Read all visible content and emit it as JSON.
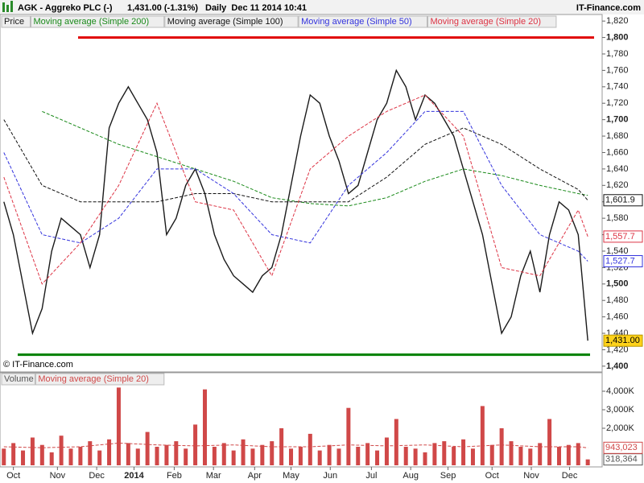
{
  "header": {
    "symbol": "AGK - Aggreko PLC (-)",
    "quote": "1,431.00 (-1.31%)",
    "period": "Daily  Dec 11 2014 10:41",
    "brand": "IT-Finance.com",
    "copyright": "© IT-Finance.com"
  },
  "chart_data": [
    {
      "type": "line",
      "categories": [
        null,
        null,
        null,
        null,
        null,
        null,
        null,
        null,
        null,
        null,
        null,
        null,
        null,
        null,
        null,
        null,
        null,
        null,
        null,
        null,
        null,
        null,
        null,
        null,
        null,
        null,
        null,
        null,
        null,
        null,
        null,
        null,
        null,
        null,
        null,
        null,
        null,
        null,
        null,
        null,
        null,
        null,
        null,
        null,
        null,
        null,
        null,
        null,
        null,
        null,
        null,
        null,
        null,
        null,
        null,
        null,
        null,
        null,
        null,
        null,
        null,
        null
      ],
      "xlim": [
        -0.4,
        62.5
      ],
      "xticks": [
        {
          "value": 1.0,
          "label": "Oct"
        },
        {
          "value": 5.6,
          "label": "Nov"
        },
        {
          "value": 9.7,
          "label": "Dec"
        },
        {
          "value": 13.6,
          "label": "2014"
        },
        {
          "value": 17.8,
          "label": "Feb"
        },
        {
          "value": 21.9,
          "label": "Mar"
        },
        {
          "value": 26.2,
          "label": "Apr"
        },
        {
          "value": 30.0,
          "label": "May"
        },
        {
          "value": 34.1,
          "label": "Jun"
        },
        {
          "value": 38.4,
          "label": "Jul"
        },
        {
          "value": 42.5,
          "label": "Aug"
        },
        {
          "value": 46.4,
          "label": "Sep"
        },
        {
          "value": 51.0,
          "label": "Oct"
        },
        {
          "value": 55.1,
          "label": "Nov"
        },
        {
          "value": 59.1,
          "label": "Dec"
        }
      ],
      "ylim": [
        1393,
        1828
      ],
      "yticks": [
        {
          "value": 1400,
          "label": "1,400"
        },
        {
          "value": 1420,
          "label": "1,420"
        },
        {
          "value": 1440,
          "label": "1,440"
        },
        {
          "value": 1460,
          "label": "1,460"
        },
        {
          "value": 1480,
          "label": "1,480"
        },
        {
          "value": 1500,
          "label": "1,500"
        },
        {
          "value": 1520,
          "label": "1,520"
        },
        {
          "value": 1540,
          "label": "1,540"
        },
        {
          "value": 1560,
          "label": "1,560"
        },
        {
          "value": 1580,
          "label": "1,580"
        },
        {
          "value": 1600,
          "label": "1,600"
        },
        {
          "value": 1620,
          "label": "1,620"
        },
        {
          "value": 1640,
          "label": "1,640"
        },
        {
          "value": 1660,
          "label": "1,660"
        },
        {
          "value": 1680,
          "label": "1,680"
        },
        {
          "value": 1700,
          "label": "1,700"
        },
        {
          "value": 1720,
          "label": "1,720"
        },
        {
          "value": 1740,
          "label": "1,740"
        },
        {
          "value": 1760,
          "label": "1,760"
        },
        {
          "value": 1780,
          "label": "1,780"
        },
        {
          "value": 1800,
          "label": "1,800"
        },
        {
          "value": 1820,
          "label": "1,820"
        }
      ],
      "series": [
        {
          "name": "Price",
          "color": "#1a1a1a",
          "values": [
            1600,
            1560,
            1500,
            1440,
            1470,
            1540,
            1580,
            1570,
            1560,
            1520,
            1560,
            1690,
            1720,
            1740,
            1720,
            1700,
            1660,
            1560,
            1580,
            1620,
            1640,
            1610,
            1560,
            1530,
            1510,
            1500,
            1490,
            1510,
            1520,
            1560,
            1620,
            1680,
            1730,
            1720,
            1680,
            1650,
            1610,
            1620,
            1660,
            1700,
            1720,
            1760,
            1740,
            1700,
            1730,
            1720,
            1700,
            1680,
            1640,
            1600,
            1560,
            1500,
            1440,
            1460,
            1510,
            1540,
            1490,
            1560,
            1600,
            1590,
            1560,
            1431
          ],
          "last_label": "1,431.00"
        },
        {
          "name": "Moving average (Simple 200)",
          "color": "#1a8a1a",
          "x": [
            0,
            4,
            8,
            12,
            16,
            20,
            24,
            28,
            32,
            36,
            40,
            44,
            48,
            52,
            56,
            60,
            61
          ],
          "values": [
            null,
            1710,
            1690,
            1670,
            1655,
            1640,
            1625,
            1605,
            1598,
            1595,
            1605,
            1625,
            1640,
            1632,
            1620,
            1610,
            1608
          ]
        },
        {
          "name": "Moving average (Simple 100)",
          "color": "#111111",
          "x": [
            0,
            4,
            8,
            12,
            16,
            20,
            24,
            28,
            32,
            36,
            40,
            44,
            48,
            52,
            56,
            60,
            61
          ],
          "values": [
            1700,
            1620,
            1600,
            1600,
            1600,
            1610,
            1610,
            1600,
            1600,
            1600,
            1630,
            1670,
            1690,
            1670,
            1640,
            1615,
            1601.9
          ],
          "last_label": "1,601.9"
        },
        {
          "name": "Moving average (Simple 50)",
          "color": "#3333dd",
          "x": [
            0,
            4,
            8,
            12,
            16,
            20,
            24,
            28,
            32,
            36,
            40,
            44,
            48,
            52,
            56,
            60,
            61
          ],
          "values": [
            1660,
            1560,
            1550,
            1580,
            1640,
            1640,
            1610,
            1560,
            1550,
            1620,
            1660,
            1710,
            1710,
            1620,
            1560,
            1540,
            1527.7
          ],
          "last_label": "1,527.7"
        },
        {
          "name": "Moving average (Simple 20)",
          "color": "#dd3344",
          "x": [
            0,
            4,
            8,
            12,
            16,
            20,
            24,
            28,
            32,
            36,
            40,
            44,
            48,
            52,
            56,
            60,
            61
          ],
          "values": [
            1630,
            1500,
            1550,
            1620,
            1720,
            1600,
            1590,
            1510,
            1640,
            1680,
            1710,
            1730,
            1680,
            1520,
            1510,
            1590,
            1557.7
          ],
          "last_label": "1,557.7"
        }
      ],
      "levels": [
        {
          "value": 1800,
          "color": "#e00000"
        },
        {
          "value": 1414,
          "color": "#008000"
        }
      ]
    },
    {
      "type": "bar",
      "xlim": [
        -0.4,
        62.5
      ],
      "ylim": [
        0,
        4870
      ],
      "yticks": [
        {
          "value": 2000,
          "label": "2,000K"
        },
        {
          "value": 3000,
          "label": "3,000K"
        },
        {
          "value": 4000,
          "label": "4,000K"
        }
      ],
      "series": [
        {
          "name": "Volume",
          "color": "#555555",
          "bar_color": "#d04848",
          "values": [
            900,
            1200,
            800,
            1500,
            1100,
            700,
            1600,
            900,
            1000,
            1300,
            800,
            1400,
            4200,
            1200,
            900,
            1800,
            1000,
            1100,
            1300,
            900,
            2200,
            4100,
            1000,
            1200,
            800,
            1400,
            900,
            1100,
            1300,
            2000,
            900,
            1000,
            1700,
            800,
            1100,
            900,
            3100,
            1000,
            1200,
            800,
            1500,
            2500,
            1000,
            900,
            700,
            1200,
            1300,
            1000,
            1400,
            900,
            3200,
            1100,
            2000,
            1300,
            1000,
            900,
            1200,
            2500,
            1000,
            1100,
            1200,
            318.364
          ],
          "last_label": "318,364"
        },
        {
          "name": "Moving average (Simple 20)",
          "color": "#d04848",
          "x": [
            0,
            4,
            8,
            12,
            16,
            20,
            24,
            28,
            32,
            36,
            40,
            44,
            48,
            52,
            56,
            60,
            61
          ],
          "values": [
            1000,
            950,
            1000,
            1200,
            1100,
            1050,
            1100,
            1000,
            1000,
            1100,
            1050,
            1100,
            1000,
            1100,
            1000,
            1000,
            943.023
          ],
          "last_label": "943,023"
        }
      ]
    }
  ]
}
